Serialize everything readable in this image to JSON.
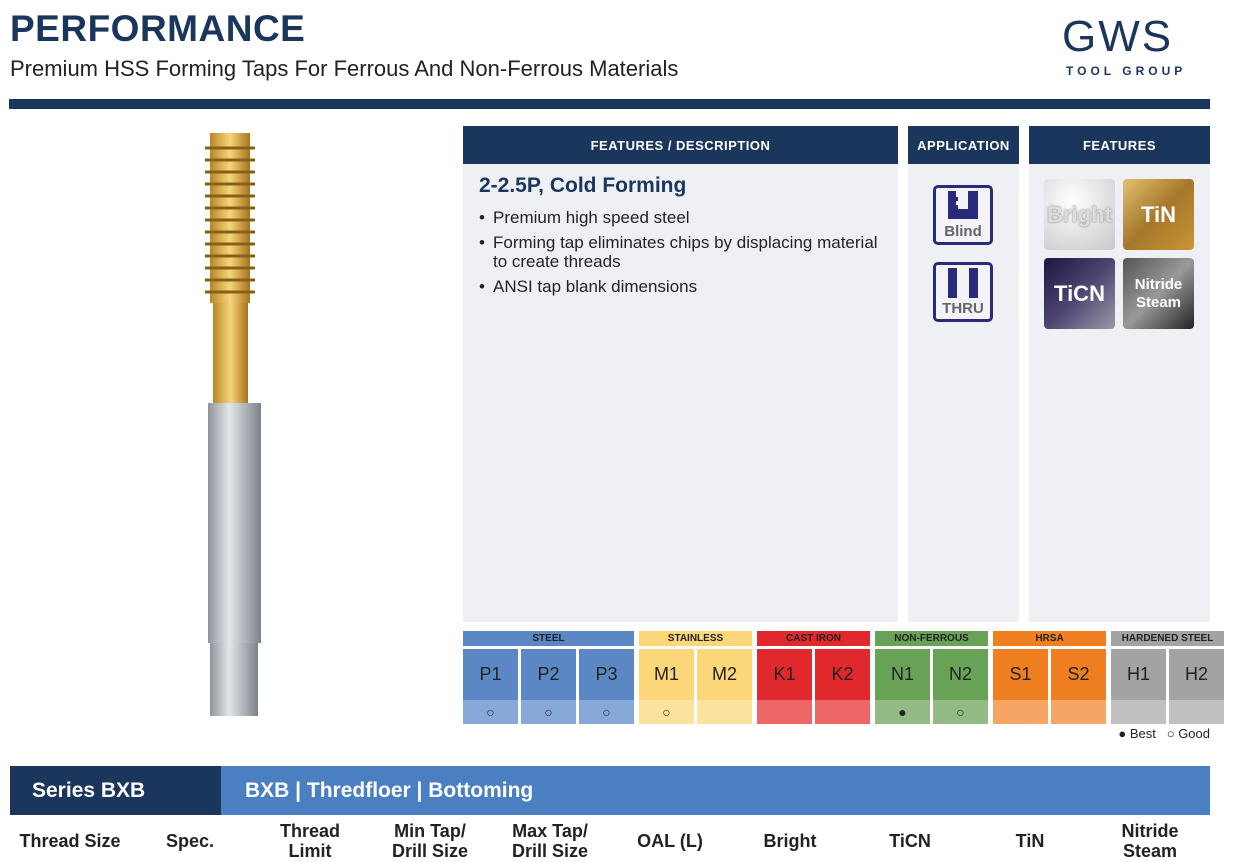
{
  "header": {
    "title": "PERFORMANCE",
    "subtitle": "Premium HSS Forming Taps For Ferrous And Non-Ferrous Materials",
    "logo_text": "GWS",
    "logo_subtext": "TOOL GROUP"
  },
  "panels": {
    "description_header": "FEATURES / DESCRIPTION",
    "application_header": "APPLICATION",
    "features_header": "FEATURES"
  },
  "description": {
    "title": "2-2.5P, Cold Forming",
    "bullets": [
      "Premium high speed steel",
      "Forming tap eliminates chips by displacing material to create threads",
      "ANSI tap blank dimensions"
    ]
  },
  "application": [
    "Blind",
    "THRU"
  ],
  "features": [
    {
      "label": "Bright"
    },
    {
      "label": "TiN"
    },
    {
      "label": "TiCN"
    },
    {
      "label": "Nitride Steam"
    }
  ],
  "materials": {
    "groups": [
      {
        "name": "STEEL",
        "color": "#5b87c5",
        "light": "#87a9d9",
        "codes": [
          "P1",
          "P2",
          "P3"
        ],
        "ratings": [
          "good",
          "good",
          "good"
        ]
      },
      {
        "name": "STAINLESS",
        "color": "#fcd77a",
        "light": "#fde29d",
        "codes": [
          "M1",
          "M2"
        ],
        "ratings": [
          "good",
          ""
        ]
      },
      {
        "name": "CAST IRON",
        "color": "#e1282d",
        "light": "#ef6666",
        "codes": [
          "K1",
          "K2"
        ],
        "ratings": [
          "",
          ""
        ]
      },
      {
        "name": "NON-FERROUS",
        "color": "#68a257",
        "light": "#94ba85",
        "codes": [
          "N1",
          "N2"
        ],
        "ratings": [
          "best",
          "good"
        ]
      },
      {
        "name": "HRSA",
        "color": "#f07f22",
        "light": "#f6a664",
        "codes": [
          "S1",
          "S2"
        ],
        "ratings": [
          "",
          ""
        ]
      },
      {
        "name": "HARDENED STEEL",
        "color": "#a3a3a3",
        "light": "#c0c0c0",
        "codes": [
          "H1",
          "H2"
        ],
        "ratings": [
          "",
          ""
        ]
      }
    ],
    "legend_best": "● Best",
    "legend_good": "○ Good"
  },
  "series": {
    "label": "Series BXB",
    "description": "BXB | Thredfloer | Bottoming"
  },
  "columns": [
    "Thread Size",
    "Spec.",
    "Thread Limit",
    "Min Tap/ Drill Size",
    "Max Tap/ Drill Size",
    "OAL (L)",
    "Bright",
    "TiCN",
    "TiN",
    "Nitride Steam"
  ]
}
